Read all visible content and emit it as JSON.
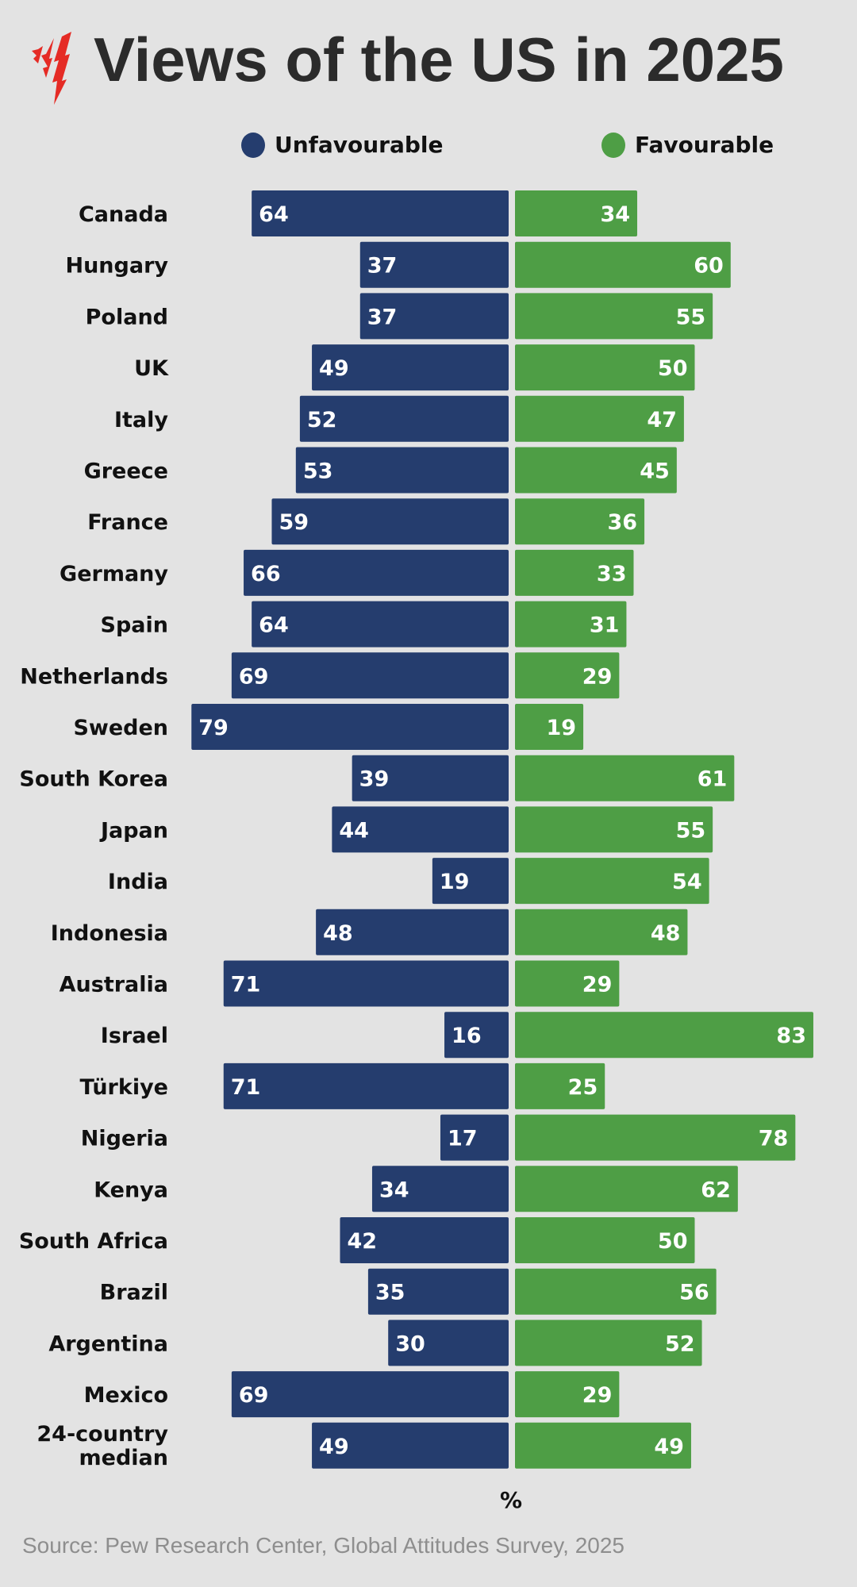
{
  "chart_data": {
    "type": "bar",
    "orientation": "horizontal-diverging",
    "title": "Views of the US in 2025",
    "unit_label": "%",
    "source": "Source: Pew Research Center, Global Attitudes Survey, 2025",
    "legend_placement": "top",
    "grid": false,
    "categories": [
      "Canada",
      "Hungary",
      "Poland",
      "UK",
      "Italy",
      "Greece",
      "France",
      "Germany",
      "Spain",
      "Netherlands",
      "Sweden",
      "South Korea",
      "Japan",
      "India",
      "Indonesia",
      "Australia",
      "Israel",
      "Türkiye",
      "Nigeria",
      "Kenya",
      "South Africa",
      "Brazil",
      "Argentina",
      "Mexico",
      "24-country median"
    ],
    "series": [
      {
        "name": "Unfavourable",
        "color": "#253d6e",
        "values": [
          64,
          37,
          37,
          49,
          52,
          53,
          59,
          66,
          64,
          69,
          79,
          39,
          44,
          19,
          48,
          71,
          16,
          71,
          17,
          34,
          42,
          35,
          30,
          69,
          49
        ]
      },
      {
        "name": "Favourable",
        "color": "#4e9e45",
        "values": [
          34,
          60,
          55,
          50,
          47,
          45,
          36,
          33,
          31,
          29,
          19,
          61,
          55,
          54,
          48,
          29,
          83,
          25,
          78,
          62,
          50,
          56,
          52,
          29,
          49
        ]
      }
    ]
  },
  "colors": {
    "background": "#e3e3e3",
    "logo": "#e52b25",
    "title": "#2b2b2b"
  }
}
